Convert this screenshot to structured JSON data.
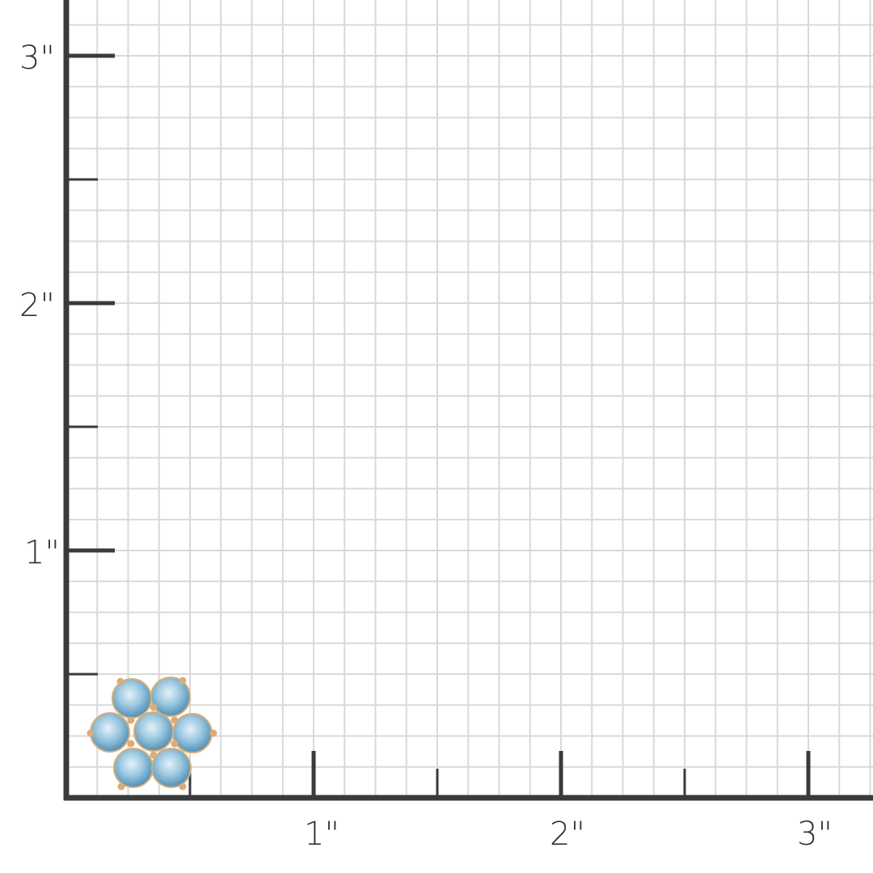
{
  "scale": {
    "unit": "inch",
    "x_labels": [
      "1\"",
      "2\"",
      "3\""
    ],
    "y_labels": [
      "1\"",
      "2\"",
      "3\""
    ],
    "grid_subdivisions_per_inch": 8,
    "colors": {
      "axis": "#3a3a3a",
      "grid": "#d9d9d9",
      "background": "#ffffff"
    }
  },
  "product": {
    "type": "flower cluster earring",
    "stone_count": 7,
    "colors": {
      "stone": "#9cc8e0",
      "metal": "#d8ad78"
    }
  }
}
